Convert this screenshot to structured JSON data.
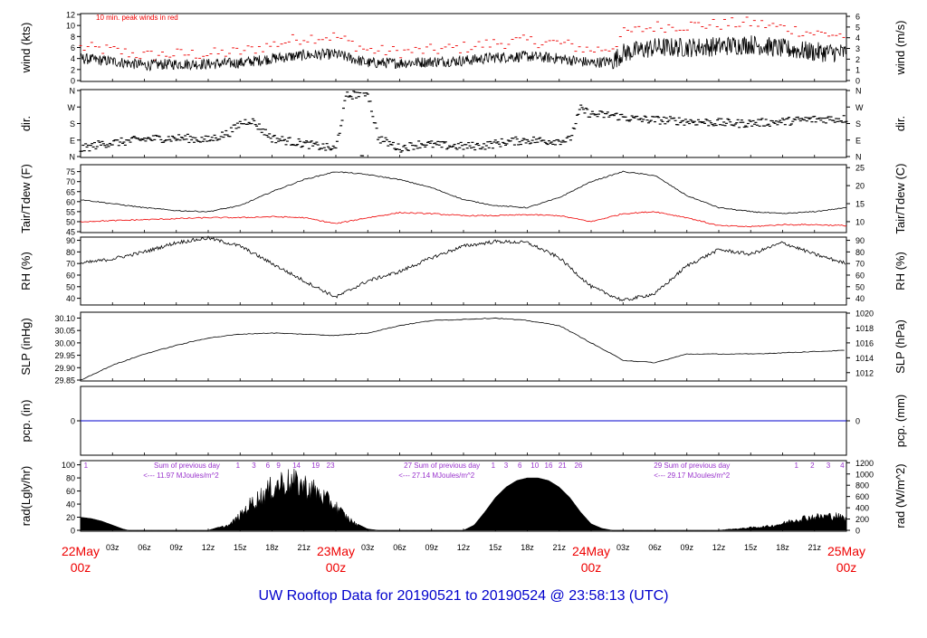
{
  "footer_title": "UW Rooftop Data for 20190521  to  20190524 @ 23:58:13  (UTC)",
  "colors": {
    "black": "#000000",
    "red": "#ee0000",
    "blue": "#0000cc",
    "purple": "#9933cc"
  },
  "x_axis": {
    "hour_ticks": [
      "03z",
      "06z",
      "09z",
      "12z",
      "15z",
      "18z",
      "21z",
      "03z",
      "06z",
      "09z",
      "12z",
      "15z",
      "18z",
      "21z",
      "03z",
      "06z",
      "09z",
      "12z",
      "15z",
      "18z",
      "21z"
    ],
    "hour_tick_positions_h": [
      3,
      6,
      9,
      12,
      15,
      18,
      21,
      27,
      30,
      33,
      36,
      39,
      42,
      45,
      51,
      54,
      57,
      60,
      63,
      66,
      69
    ],
    "day_ticks": [
      {
        "top": "22May",
        "bottom": "00z",
        "h": 0
      },
      {
        "top": "23May",
        "bottom": "00z",
        "h": 24
      },
      {
        "top": "24May",
        "bottom": "00z",
        "h": 48
      },
      {
        "top": "25May",
        "bottom": "00z",
        "h": 72
      }
    ]
  },
  "chart_data": [
    {
      "type": "line",
      "id": "wind",
      "ylabel_left": "wind (kts)",
      "ylabel_right": "wind (m/s)",
      "ylim": [
        0,
        12
      ],
      "ticks_left": [
        0,
        2,
        4,
        6,
        8,
        10,
        12
      ],
      "ticks_right": [
        "0",
        "1",
        "2",
        "3",
        "4",
        "5",
        "6"
      ],
      "ticks_right_values_kts": [
        0,
        1.944,
        3.888,
        5.832,
        7.776,
        9.72,
        11.664
      ],
      "annotation": "10 min. peak winds in red",
      "series": [
        {
          "name": "wind",
          "color": "#000000",
          "x_h": [
            0,
            3,
            6,
            9,
            12,
            15,
            18,
            21,
            24,
            27,
            30,
            33,
            36,
            39,
            42,
            45,
            48,
            50,
            51,
            54,
            57,
            60,
            63,
            66,
            69,
            72
          ],
          "values": [
            4,
            3.5,
            2.8,
            3,
            3,
            3.2,
            4,
            4.6,
            4.8,
            3.2,
            3.2,
            3.4,
            3.6,
            4.2,
            4.4,
            4,
            3.2,
            3.5,
            5,
            6,
            6,
            6.2,
            6.6,
            5.8,
            5.2,
            5
          ]
        },
        {
          "name": "10 min. peak winds",
          "color": "#ee0000",
          "x_h": [
            0,
            3,
            6,
            9,
            12,
            15,
            18,
            21,
            24,
            27,
            30,
            33,
            36,
            39,
            42,
            45,
            48,
            50,
            51,
            54,
            57,
            60,
            63,
            66,
            69,
            72
          ],
          "values": [
            6,
            5.5,
            4.5,
            4.8,
            4.8,
            5.2,
            6.5,
            7.8,
            8,
            5.5,
            5.2,
            5.5,
            6,
            6.8,
            7.2,
            6.8,
            5.5,
            6,
            8.5,
            9.8,
            10,
            10.2,
            10.5,
            9.6,
            8.6,
            8.2
          ]
        }
      ]
    },
    {
      "type": "scatter",
      "id": "dir",
      "ylabel_left": "dir.",
      "ylabel_right": "dir.",
      "yticks": [
        "N",
        "E",
        "S",
        "W",
        "N"
      ],
      "ytick_degrees": [
        0,
        90,
        180,
        270,
        360
      ],
      "ylim": [
        0,
        360
      ],
      "series": [
        {
          "name": "dir",
          "color": "#000000",
          "x_h": [
            0,
            2,
            4,
            6,
            8,
            10,
            12,
            14,
            15,
            16,
            18,
            20,
            22,
            24,
            25,
            26,
            27,
            28,
            30,
            32,
            34,
            36,
            38,
            40,
            42,
            44,
            46,
            47,
            48,
            50,
            52,
            54,
            56,
            58,
            60,
            62,
            64,
            66,
            68,
            70,
            72
          ],
          "values": [
            40,
            70,
            80,
            95,
            100,
            100,
            90,
            130,
            180,
            200,
            100,
            80,
            60,
            40,
            330,
            340,
            350,
            100,
            45,
            70,
            60,
            55,
            60,
            80,
            90,
            85,
            90,
            260,
            230,
            225,
            205,
            200,
            195,
            190,
            185,
            180,
            185,
            190,
            200,
            205,
            205
          ]
        }
      ]
    },
    {
      "type": "line",
      "id": "temp",
      "ylabel_left": "Tair/Tdew (F)",
      "ylabel_right": "Tair/Tdew (C)",
      "ylim": [
        45,
        78
      ],
      "ticks_left": [
        45,
        50,
        55,
        60,
        65,
        70,
        75
      ],
      "ticks_right": [
        "10",
        "15",
        "20",
        "25"
      ],
      "ticks_right_values_f": [
        50,
        59,
        68,
        77
      ],
      "series": [
        {
          "name": "Tair",
          "color": "#000000",
          "x_h": [
            0,
            3,
            6,
            9,
            12,
            15,
            18,
            21,
            24,
            27,
            30,
            33,
            36,
            39,
            42,
            45,
            48,
            51,
            54,
            57,
            60,
            63,
            66,
            69,
            72
          ],
          "values": [
            61,
            59,
            57,
            55.5,
            55,
            58,
            65,
            71,
            75,
            73.5,
            71,
            67,
            61,
            58,
            57,
            62,
            70,
            75,
            73,
            63,
            57,
            55,
            54,
            55,
            57
          ]
        },
        {
          "name": "Tdew",
          "color": "#ee0000",
          "x_h": [
            0,
            3,
            6,
            9,
            12,
            15,
            18,
            21,
            24,
            27,
            30,
            33,
            36,
            39,
            42,
            45,
            48,
            51,
            54,
            57,
            60,
            63,
            66,
            69,
            72
          ],
          "values": [
            50,
            50.5,
            51,
            51.5,
            52,
            52,
            52.5,
            52,
            49,
            52,
            54.5,
            54,
            53,
            53,
            53.5,
            53,
            50,
            54,
            55,
            52,
            48,
            47.5,
            48.5,
            48.5,
            48
          ]
        }
      ]
    },
    {
      "type": "line",
      "id": "rh",
      "ylabel_left": "RH (%)",
      "ylabel_right": "RH (%)",
      "ylim": [
        35,
        92
      ],
      "ticks_left": [
        40,
        50,
        60,
        70,
        80,
        90
      ],
      "ticks_right": [
        "40",
        "50",
        "60",
        "70",
        "80",
        "90"
      ],
      "series": [
        {
          "name": "RH",
          "color": "#000000",
          "x_h": [
            0,
            3,
            6,
            9,
            12,
            15,
            18,
            21,
            24,
            27,
            30,
            33,
            36,
            39,
            42,
            45,
            48,
            51,
            54,
            57,
            60,
            63,
            66,
            69,
            72
          ],
          "values": [
            70,
            74,
            80,
            88,
            92,
            85,
            70,
            55,
            41,
            55,
            63,
            75,
            85,
            89,
            88,
            75,
            50,
            38,
            44,
            68,
            82,
            78,
            88,
            78,
            70
          ]
        }
      ]
    },
    {
      "type": "line",
      "id": "slp",
      "ylabel_left": "SLP (inHg)",
      "ylabel_right": "SLP (hPa)",
      "ylim": [
        29.85,
        30.12
      ],
      "ticks_left": [
        "29.85",
        "29.90",
        "29.95",
        "30.00",
        "30.05",
        "30.10"
      ],
      "ticks_left_values": [
        29.85,
        29.9,
        29.95,
        30.0,
        30.05,
        30.1
      ],
      "ticks_right": [
        "1012",
        "1014",
        "1016",
        "1018",
        "1020"
      ],
      "ticks_right_values_inhg": [
        29.88,
        29.94,
        30.0,
        30.06,
        30.12
      ],
      "series": [
        {
          "name": "SLP",
          "color": "#000000",
          "x_h": [
            0,
            3,
            6,
            9,
            12,
            15,
            18,
            21,
            24,
            27,
            30,
            33,
            36,
            39,
            42,
            45,
            48,
            51,
            54,
            57,
            60,
            63,
            66,
            69,
            72
          ],
          "values": [
            29.85,
            29.91,
            29.955,
            29.99,
            30.02,
            30.035,
            30.04,
            30.035,
            30.03,
            30.04,
            30.07,
            30.09,
            30.095,
            30.1,
            30.09,
            30.07,
            30.0,
            29.93,
            29.92,
            29.955,
            29.955,
            29.955,
            29.96,
            29.965,
            29.97
          ]
        }
      ]
    },
    {
      "type": "line",
      "id": "pcp",
      "ylabel_left": "pcp. (in)",
      "ylabel_right": "pcp. (mm)",
      "ylim": [
        -1,
        1
      ],
      "ticks_left": [
        "0"
      ],
      "ticks_right": [
        "0"
      ],
      "series": [
        {
          "name": "pcp",
          "color": "#0000cc",
          "x_h": [
            0,
            72
          ],
          "values": [
            0,
            0
          ]
        }
      ]
    },
    {
      "type": "area",
      "id": "rad",
      "ylabel_left": "rad(Lgly/hr)",
      "ylabel_right": "rad (W/m^2)",
      "ylim": [
        0,
        105
      ],
      "ticks_left": [
        "0",
        "20",
        "40",
        "60",
        "80",
        "100"
      ],
      "ticks_left_values": [
        0,
        20,
        40,
        60,
        80,
        100
      ],
      "ticks_right": [
        "0",
        "200",
        "400",
        "600",
        "800",
        "1000",
        "1200"
      ],
      "ticks_right_values_lgly": [
        0,
        17.2,
        34.4,
        51.6,
        68.8,
        86,
        103.2
      ],
      "annotations": [
        {
          "text": "Sum of previous day",
          "h": 4
        },
        {
          "text": "<--- 11.97 MJoules/m^2",
          "h": 3
        },
        {
          "text": "27 Sum of previous day",
          "h": 27.5
        },
        {
          "text": "<--- 27.14 MJoules/m^2",
          "h": 27
        },
        {
          "text": "29  Sum of previous day",
          "h": 51
        },
        {
          "text": "<--- 29.17 MJoules/m^2",
          "h": 51
        }
      ],
      "hour_markers": [
        {
          "label": "1",
          "h": 0.5
        },
        {
          "label": "1",
          "h": 14.8
        },
        {
          "label": "3",
          "h": 16.3
        },
        {
          "label": "6",
          "h": 17.6
        },
        {
          "label": "9",
          "h": 18.6
        },
        {
          "label": "14",
          "h": 20.3
        },
        {
          "label": "19",
          "h": 22.1
        },
        {
          "label": "23",
          "h": 23.5
        },
        {
          "label": "1",
          "h": 38.8
        },
        {
          "label": "3",
          "h": 40
        },
        {
          "label": "6",
          "h": 41.3
        },
        {
          "label": "10",
          "h": 42.7
        },
        {
          "label": "16",
          "h": 44
        },
        {
          "label": "21",
          "h": 45.3
        },
        {
          "label": "26",
          "h": 46.8
        },
        {
          "label": "1",
          "h": 67.3
        },
        {
          "label": "2",
          "h": 68.8
        },
        {
          "label": "3",
          "h": 70.3
        },
        {
          "label": "4",
          "h": 71.6
        }
      ],
      "series": [
        {
          "name": "rad",
          "color": "#000000",
          "x_h": [
            0,
            1,
            2,
            3,
            4,
            4.5,
            5,
            12,
            13,
            14,
            15,
            16,
            17,
            18,
            19,
            20,
            21,
            22,
            23,
            24,
            25,
            26,
            27,
            28,
            36,
            37,
            38,
            39,
            40,
            41,
            42,
            43,
            44,
            45,
            46,
            47,
            48,
            49,
            50,
            60,
            61,
            62,
            63,
            64,
            65,
            66,
            67,
            68,
            69,
            70,
            71,
            72
          ],
          "values": [
            20,
            18,
            14,
            8,
            2,
            0,
            0,
            0,
            5,
            10,
            28,
            50,
            65,
            80,
            92,
            90,
            85,
            75,
            60,
            45,
            25,
            10,
            2,
            0,
            0,
            8,
            28,
            50,
            66,
            76,
            80,
            80,
            76,
            66,
            50,
            28,
            10,
            3,
            0,
            0,
            2,
            3,
            5,
            6,
            8,
            12,
            18,
            22,
            24,
            25,
            26,
            20
          ]
        }
      ]
    }
  ]
}
